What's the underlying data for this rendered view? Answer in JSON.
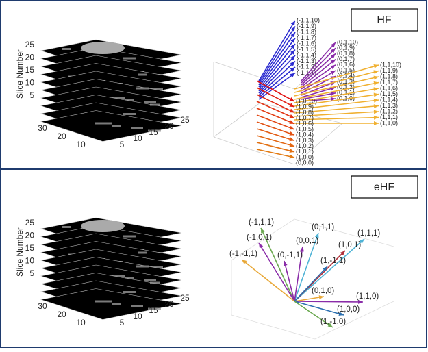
{
  "panels": [
    {
      "label": "HF",
      "stack": {
        "y_label": "Slice Number",
        "z_ticks": [
          "25",
          "20",
          "15",
          "10",
          "5"
        ],
        "x_ticks": [
          "30",
          "20",
          "10"
        ],
        "y_ticks": [
          "5",
          "10",
          "15",
          "20",
          "25"
        ]
      },
      "vectors": {
        "left": [
          "(-1,1,10)",
          "(-1,1,9)",
          "(-1,1,8)",
          "(-1,1,7)",
          "(-1,1,6)",
          "(-1,1,5)",
          "(-1,1,4)",
          "(-1,1,3)",
          "(-1,1,2)",
          "(-1,1,1)"
        ],
        "middle": [
          "(0,1,10)",
          "(0,1,9)",
          "(0,1,8)",
          "(0,1,7)",
          "(0,1,6)",
          "(0,1,5)",
          "(0,1,4)",
          "(0,1,3)",
          "(0,1,2)",
          "(0,1,1)",
          "(0,1,0)"
        ],
        "right": [
          "(1,1,10)",
          "(1,1,9)",
          "(1,1,8)",
          "(1,1,7)",
          "(1,1,6)",
          "(1,1,5)",
          "(1,1,4)",
          "(1,1,3)",
          "(1,1,2)",
          "(1,1,1)",
          "(1,1,0)"
        ],
        "bottom": [
          "(1,0,10)",
          "(1,0,9)",
          "(1,0,8)",
          "(1,0,7)",
          "(1,0,6)",
          "(1,0,5)",
          "(1,0,4)",
          "(1,0,3)",
          "(1,0,2)",
          "(1,0,1)",
          "(1,0,0)",
          "(0,0,0)"
        ]
      }
    },
    {
      "label": "eHF",
      "stack": {
        "y_label": "Slice Number",
        "z_ticks": [
          "25",
          "20",
          "15",
          "10",
          "5"
        ],
        "x_ticks": [
          "30",
          "20",
          "10"
        ],
        "y_ticks": [
          "5",
          "10",
          "15",
          "20",
          "25"
        ]
      },
      "vectors": {
        "labels": [
          "(-1,1,1)",
          "(0,1,1)",
          "(1,1,1)",
          "(-1,0,1)",
          "(0,0,1)",
          "(1,0,1)",
          "(-1,-1,1)",
          "(0,-1,1)",
          "(1,-1,1)",
          "(0,1,0)",
          "(1,1,0)",
          "(1,0,0)",
          "(1,-1,0)"
        ]
      }
    }
  ]
}
